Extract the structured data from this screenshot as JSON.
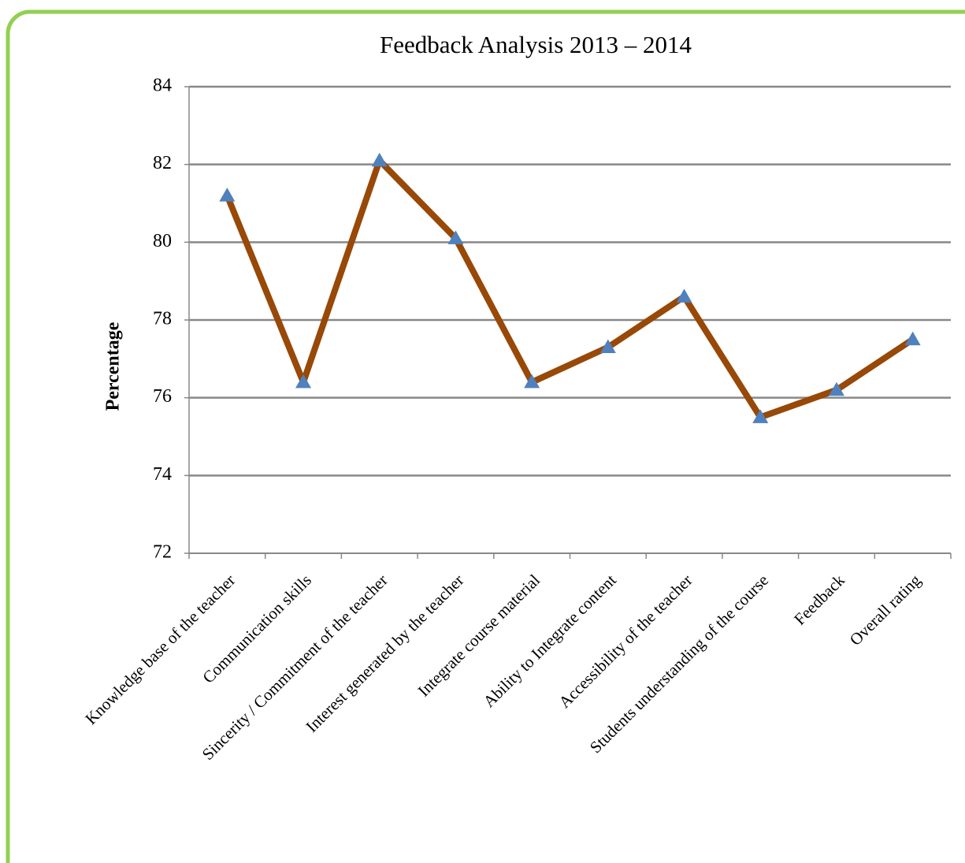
{
  "chart_data": {
    "type": "line",
    "title": "Feedback Analysis 2013 – 2014",
    "y_label": "Percentage",
    "categories": [
      "Knowledge base of the teacher",
      "Communication skills",
      "Sincerity / Commitment of the teacher",
      "Interest generated by the teacher",
      "Integrate course material",
      "Ability to Integrate content",
      "Accessibility of the teacher",
      "Students understanding of the course",
      "Feedback",
      "Overall rating"
    ],
    "values": [
      81.2,
      76.4,
      82.1,
      80.1,
      76.4,
      77.3,
      78.6,
      75.5,
      76.2,
      77.5
    ],
    "color": "#984807",
    "marker_color": "#4f81bd",
    "ylim": [
      72,
      84
    ],
    "yticks": [
      72,
      74,
      76,
      78,
      80,
      82,
      84
    ],
    "grid": true
  }
}
